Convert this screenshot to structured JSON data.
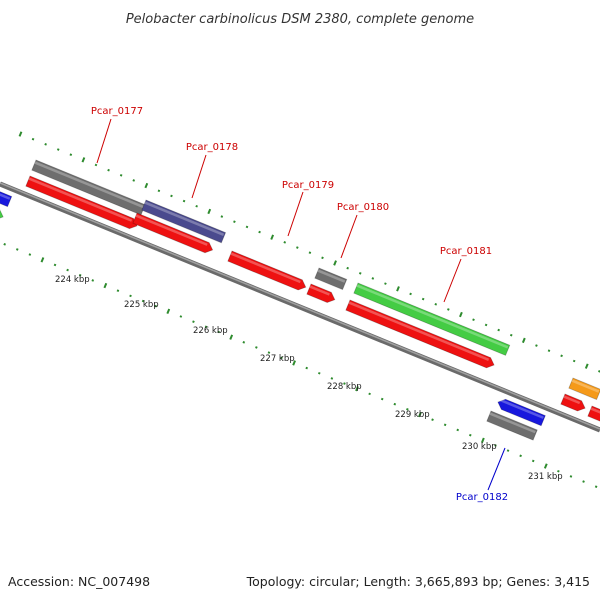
{
  "title": "Pelobacter carbinolicus DSM 2380, complete genome",
  "accession": "Accession: NC_007498",
  "summary": "Topology: circular; Length: 3,665,893 bp; Genes: 3,415",
  "colors": {
    "backbone": "#808080",
    "tick": "#2e8b2e",
    "label_forward": "#cc0000",
    "label_reverse": "#0000cc",
    "gray": "#6e6e6e",
    "red": "#ee1111",
    "purple": "#4a4a8e",
    "green": "#44cc44",
    "blue": "#1818dd",
    "orange": "#f59a1a"
  },
  "tick_labels": [
    "224 kbp",
    "225 kbp",
    "226 kbp",
    "227 kbp",
    "228 kbp",
    "229 kbp",
    "230 kbp",
    "231 kbp"
  ],
  "gene_labels": [
    {
      "text": "Pcar_0177",
      "strand": "forward"
    },
    {
      "text": "Pcar_0178",
      "strand": "forward"
    },
    {
      "text": "Pcar_0179",
      "strand": "forward"
    },
    {
      "text": "Pcar_0180",
      "strand": "forward"
    },
    {
      "text": "Pcar_0181",
      "strand": "forward"
    },
    {
      "text": "Pcar_0182",
      "strand": "reverse"
    }
  ],
  "features": [
    {
      "color": "gray"
    },
    {
      "color": "purple"
    },
    {
      "color": "red"
    },
    {
      "color": "red"
    },
    {
      "color": "red"
    },
    {
      "color": "gray"
    },
    {
      "color": "red"
    },
    {
      "color": "green"
    },
    {
      "color": "red"
    },
    {
      "color": "blue"
    },
    {
      "color": "gray"
    },
    {
      "color": "orange"
    },
    {
      "color": "red"
    },
    {
      "color": "red"
    },
    {
      "color": "blue"
    },
    {
      "color": "green"
    }
  ]
}
